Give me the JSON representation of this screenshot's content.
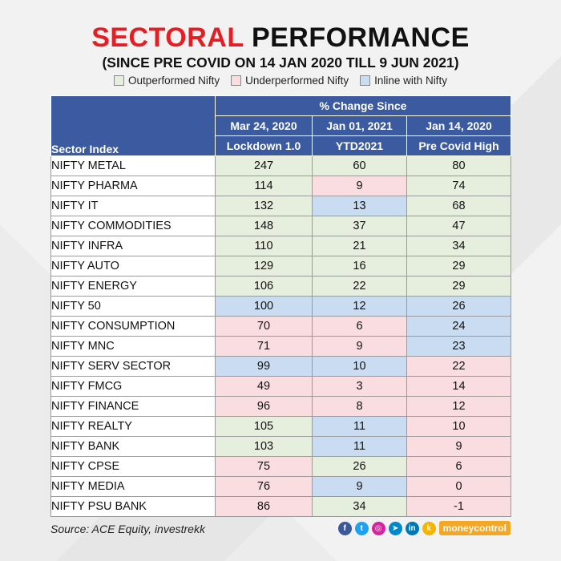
{
  "title": {
    "part1": "SECTORAL",
    "part2": "PERFORMANCE"
  },
  "subtitle": "(SINCE PRE COVID ON 14 JAN 2020 TILL 9 JUN 2021)",
  "legend": [
    {
      "label": "Outperformed Nifty",
      "color": "#e6efdd"
    },
    {
      "label": "Underperformed Nifty",
      "color": "#f9dde0"
    },
    {
      "label": "Inline with Nifty",
      "color": "#cadcf1"
    }
  ],
  "colors": {
    "outperformed": "#e6efdd",
    "underperformed": "#f9dde0",
    "inline": "#cadcf1",
    "header": "#3b5aa0",
    "accent": "#e31e24"
  },
  "chart_data": {
    "type": "table",
    "title": "SECTORAL PERFORMANCE",
    "group_header": "% Change Since",
    "row_header": "Sector Index",
    "columns": [
      {
        "date": "Mar 24, 2020",
        "label": "Lockdown 1.0"
      },
      {
        "date": "Jan 01, 2021",
        "label": "YTD2021"
      },
      {
        "date": "Jan 14, 2020",
        "label": "Pre Covid High"
      }
    ],
    "rows": [
      {
        "sector": "NIFTY METAL",
        "values": [
          247,
          60,
          80
        ],
        "status": [
          "out",
          "out",
          "out"
        ]
      },
      {
        "sector": "NIFTY PHARMA",
        "values": [
          114,
          9,
          74
        ],
        "status": [
          "out",
          "under",
          "out"
        ]
      },
      {
        "sector": "NIFTY IT",
        "values": [
          132,
          13,
          68
        ],
        "status": [
          "out",
          "inline",
          "out"
        ]
      },
      {
        "sector": "NIFTY COMMODITIES",
        "values": [
          148,
          37,
          47
        ],
        "status": [
          "out",
          "out",
          "out"
        ]
      },
      {
        "sector": "NIFTY INFRA",
        "values": [
          110,
          21,
          34
        ],
        "status": [
          "out",
          "out",
          "out"
        ]
      },
      {
        "sector": "NIFTY AUTO",
        "values": [
          129,
          16,
          29
        ],
        "status": [
          "out",
          "out",
          "out"
        ]
      },
      {
        "sector": "NIFTY ENERGY",
        "values": [
          106,
          22,
          29
        ],
        "status": [
          "out",
          "out",
          "out"
        ]
      },
      {
        "sector": "NIFTY 50",
        "values": [
          100,
          12,
          26
        ],
        "status": [
          "inline",
          "inline",
          "inline"
        ]
      },
      {
        "sector": "NIFTY CONSUMPTION",
        "values": [
          70,
          6,
          24
        ],
        "status": [
          "under",
          "under",
          "inline"
        ]
      },
      {
        "sector": "NIFTY MNC",
        "values": [
          71,
          9,
          23
        ],
        "status": [
          "under",
          "under",
          "inline"
        ]
      },
      {
        "sector": "NIFTY SERV SECTOR",
        "values": [
          99,
          10,
          22
        ],
        "status": [
          "inline",
          "inline",
          "under"
        ]
      },
      {
        "sector": "NIFTY FMCG",
        "values": [
          49,
          3,
          14
        ],
        "status": [
          "under",
          "under",
          "under"
        ]
      },
      {
        "sector": "NIFTY FINANCE",
        "values": [
          96,
          8,
          12
        ],
        "status": [
          "under",
          "under",
          "under"
        ]
      },
      {
        "sector": "NIFTY REALTY",
        "values": [
          105,
          11,
          10
        ],
        "status": [
          "out",
          "inline",
          "under"
        ]
      },
      {
        "sector": "NIFTY BANK",
        "values": [
          103,
          11,
          9
        ],
        "status": [
          "out",
          "inline",
          "under"
        ]
      },
      {
        "sector": "NIFTY CPSE",
        "values": [
          75,
          26,
          6
        ],
        "status": [
          "under",
          "out",
          "under"
        ]
      },
      {
        "sector": "NIFTY MEDIA",
        "values": [
          76,
          9,
          0
        ],
        "status": [
          "under",
          "inline",
          "under"
        ]
      },
      {
        "sector": "NIFTY PSU BANK",
        "values": [
          86,
          34,
          -1
        ],
        "status": [
          "under",
          "out",
          "under"
        ]
      }
    ]
  },
  "source": "Source: ACE Equity, investrekk",
  "social": [
    {
      "icon": "facebook-icon",
      "glyph": "f",
      "color": "#3b5998"
    },
    {
      "icon": "twitter-icon",
      "glyph": "t",
      "color": "#1da1f2"
    },
    {
      "icon": "instagram-icon",
      "glyph": "◎",
      "color": "#d6249f"
    },
    {
      "icon": "telegram-icon",
      "glyph": "➤",
      "color": "#0088cc"
    },
    {
      "icon": "linkedin-icon",
      "glyph": "in",
      "color": "#0077b5"
    },
    {
      "icon": "koo-icon",
      "glyph": "k",
      "color": "#f4b400"
    }
  ],
  "brand": "moneycontrol"
}
